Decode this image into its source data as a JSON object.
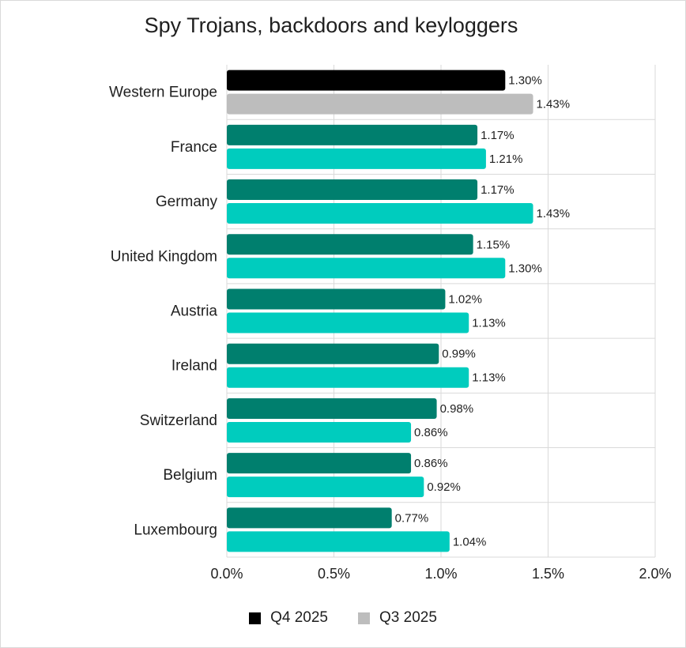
{
  "chart_data": {
    "type": "bar",
    "orientation": "horizontal",
    "title": "Spy Trojans, backdoors and keyloggers",
    "categories": [
      "Western Europe",
      "France",
      "Germany",
      "United Kingdom",
      "Austria",
      "Ireland",
      "Switzerland",
      "Belgium",
      "Luxembourg"
    ],
    "series": [
      {
        "name": "Q4 2025",
        "values": [
          1.3,
          1.17,
          1.17,
          1.15,
          1.02,
          0.99,
          0.98,
          0.86,
          0.77
        ],
        "labels": [
          "1.30%",
          "1.17%",
          "1.17%",
          "1.15%",
          "1.02%",
          "0.99%",
          "0.98%",
          "0.86%",
          "0.77%"
        ]
      },
      {
        "name": "Q3 2025",
        "values": [
          1.43,
          1.21,
          1.43,
          1.3,
          1.13,
          1.13,
          0.86,
          0.92,
          1.04
        ],
        "labels": [
          "1.43%",
          "1.21%",
          "1.43%",
          "1.30%",
          "1.13%",
          "1.13%",
          "0.86%",
          "0.92%",
          "1.04%"
        ]
      }
    ],
    "xlim": [
      0,
      2.0
    ],
    "xticks": [
      0,
      0.5,
      1.0,
      1.5,
      2.0
    ],
    "xtick_labels": [
      "0.0%",
      "0.5%",
      "1.0%",
      "1.5%",
      "2.0%"
    ],
    "xlabel": "",
    "ylabel": "",
    "grid": true,
    "legend_position": "bottom-center",
    "colors": {
      "highlight_q4": "#000000",
      "highlight_q3": "#bdbdbd",
      "q4": "#007f6e",
      "q3": "#00ccbe",
      "grid": "#d9d9d9"
    }
  },
  "legend": [
    {
      "label": "Q4 2025",
      "color": "#000000"
    },
    {
      "label": "Q3 2025",
      "color": "#bdbdbd"
    }
  ]
}
